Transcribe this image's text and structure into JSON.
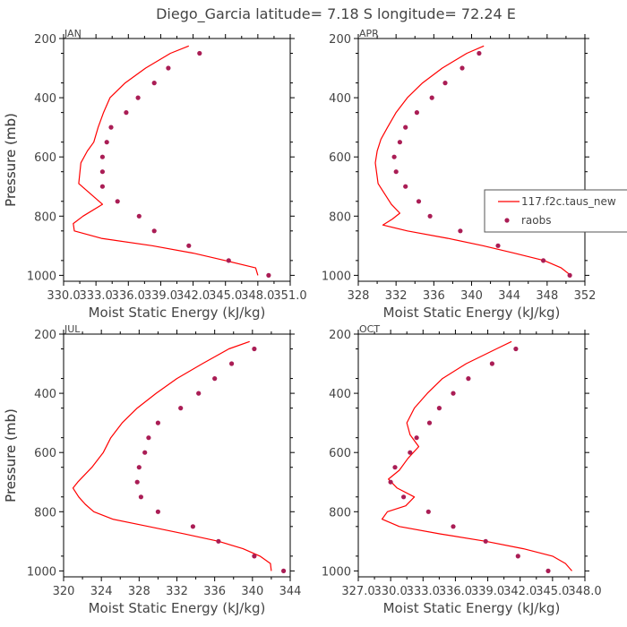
{
  "figure_title": "Diego_Garcia  latitude= 7.18 S longitude= 72.24 E",
  "colors": {
    "model": "#ff0000",
    "obs": "#aa1d55",
    "axis": "#000000",
    "text": "#444444"
  },
  "legend": {
    "model_label": "117.f2c.taus_new",
    "obs_label": "raobs"
  },
  "chart_data": [
    {
      "type": "line",
      "panel": "JAN",
      "title": "JAN",
      "xlabel": "Moist Static Energy (kJ/kg)",
      "ylabel": "Pressure (mb)",
      "xlim": [
        330.0,
        351.0
      ],
      "ylim": [
        1020,
        200
      ],
      "xticks": [
        330.0,
        333.0,
        336.0,
        339.0,
        342.0,
        345.0,
        348.0,
        351.0
      ],
      "xtick_labels": [
        "330.0",
        "333.0",
        "336.0",
        "339.0",
        "342.0",
        "345.0",
        "348.0",
        "351.0"
      ],
      "yticks": [
        200,
        400,
        600,
        800,
        1000
      ],
      "ytick_labels": [
        "200",
        "400",
        "600",
        "800",
        "1000"
      ],
      "model": {
        "name": "117.f2c.taus_new",
        "p": [
          225,
          250,
          300,
          350,
          400,
          450,
          500,
          550,
          580,
          620,
          690,
          760,
          800,
          825,
          850,
          875,
          900,
          925,
          950,
          975,
          1000
        ],
        "x": [
          341.6,
          339.9,
          337.6,
          335.7,
          334.3,
          333.7,
          333.2,
          332.8,
          332.2,
          331.6,
          331.4,
          333.6,
          331.8,
          330.9,
          331.0,
          333.5,
          338.2,
          342.0,
          345.0,
          347.8,
          348.0
        ]
      },
      "obs": {
        "name": "raobs",
        "p": [
          250,
          300,
          350,
          400,
          450,
          500,
          550,
          600,
          650,
          700,
          750,
          800,
          850,
          900,
          950,
          1000
        ],
        "x": [
          342.6,
          339.7,
          338.4,
          336.9,
          335.8,
          334.4,
          334.0,
          333.6,
          333.6,
          333.6,
          335.0,
          337.0,
          338.4,
          341.6,
          345.3,
          349.0
        ]
      }
    },
    {
      "type": "line",
      "panel": "APR",
      "title": "APR",
      "xlabel": "Moist Static Energy (kJ/kg)",
      "ylabel": "Pressure (mb)",
      "xlim": [
        328,
        352
      ],
      "ylim": [
        1020,
        200
      ],
      "xticks": [
        328,
        332,
        336,
        340,
        344,
        348,
        352
      ],
      "xtick_labels": [
        "328",
        "332",
        "336",
        "340",
        "344",
        "348",
        "352"
      ],
      "yticks": [
        200,
        400,
        600,
        800,
        1000
      ],
      "ytick_labels": [
        "200",
        "400",
        "600",
        "800",
        "1000"
      ],
      "model": {
        "name": "117.f2c.taus_new",
        "p": [
          225,
          250,
          300,
          350,
          400,
          450,
          500,
          540,
          580,
          620,
          690,
          760,
          790,
          810,
          830,
          850,
          875,
          900,
          925,
          950,
          975,
          1000
        ],
        "x": [
          341.3,
          339.5,
          336.9,
          334.8,
          333.2,
          332.0,
          331.1,
          330.4,
          330.0,
          329.8,
          330.1,
          331.5,
          332.4,
          331.6,
          330.6,
          333.2,
          337.5,
          341.2,
          344.5,
          347.7,
          349.5,
          350.5
        ]
      },
      "obs": {
        "name": "raobs",
        "p": [
          250,
          300,
          350,
          400,
          450,
          500,
          550,
          600,
          650,
          700,
          750,
          800,
          850,
          900,
          950,
          1000
        ],
        "x": [
          340.8,
          339.0,
          337.2,
          335.8,
          334.2,
          333.0,
          332.4,
          331.8,
          332.0,
          333.0,
          334.4,
          335.6,
          338.8,
          342.8,
          347.6,
          350.4
        ]
      }
    },
    {
      "type": "line",
      "panel": "JUL",
      "title": "JUL",
      "xlabel": "Moist Static Energy (kJ/kg)",
      "ylabel": "Pressure (mb)",
      "xlim": [
        320,
        344
      ],
      "ylim": [
        1020,
        200
      ],
      "xticks": [
        320,
        324,
        328,
        332,
        336,
        340,
        344
      ],
      "xtick_labels": [
        "320",
        "324",
        "328",
        "332",
        "336",
        "340",
        "344"
      ],
      "yticks": [
        200,
        400,
        600,
        800,
        1000
      ],
      "ytick_labels": [
        "200",
        "400",
        "600",
        "800",
        "1000"
      ],
      "model": {
        "name": "117.f2c.taus_new",
        "p": [
          225,
          250,
          300,
          350,
          400,
          450,
          500,
          550,
          600,
          650,
          700,
          720,
          750,
          775,
          800,
          825,
          850,
          875,
          900,
          925,
          950,
          975,
          1000
        ],
        "x": [
          339.7,
          337.5,
          334.7,
          332.0,
          329.8,
          327.8,
          326.2,
          325.0,
          324.2,
          323.0,
          321.5,
          321.0,
          321.6,
          322.3,
          323.2,
          325.2,
          329.0,
          332.8,
          336.4,
          339.0,
          340.8,
          341.9,
          342.0
        ]
      },
      "obs": {
        "name": "raobs",
        "p": [
          250,
          300,
          350,
          400,
          450,
          500,
          550,
          600,
          650,
          700,
          750,
          800,
          850,
          900,
          950,
          1000
        ],
        "x": [
          340.2,
          337.8,
          336.0,
          334.3,
          332.4,
          330.0,
          329.0,
          328.6,
          328.0,
          327.8,
          328.2,
          330.0,
          333.7,
          336.4,
          340.2,
          343.3
        ]
      }
    },
    {
      "type": "line",
      "panel": "OCT",
      "title": "OCT",
      "xlabel": "Moist Static Energy (kJ/kg)",
      "ylabel": "Pressure (mb)",
      "xlim": [
        327.0,
        348.0
      ],
      "ylim": [
        1020,
        200
      ],
      "xticks": [
        327.0,
        330.0,
        333.0,
        336.0,
        339.0,
        342.0,
        345.0,
        348.0
      ],
      "xtick_labels": [
        "327.0",
        "330.0",
        "333.0",
        "336.0",
        "339.0",
        "342.0",
        "345.0",
        "348.0"
      ],
      "yticks": [
        200,
        400,
        600,
        800,
        1000
      ],
      "ytick_labels": [
        "200",
        "400",
        "600",
        "800",
        "1000"
      ],
      "model": {
        "name": "117.f2c.taus_new",
        "p": [
          225,
          250,
          300,
          350,
          400,
          450,
          500,
          540,
          580,
          620,
          660,
          690,
          720,
          750,
          780,
          800,
          825,
          850,
          875,
          900,
          925,
          950,
          975,
          1000
        ],
        "x": [
          341.2,
          339.8,
          337.0,
          334.8,
          333.4,
          332.2,
          331.5,
          331.8,
          332.6,
          331.6,
          330.8,
          329.8,
          330.6,
          332.2,
          331.4,
          329.7,
          329.2,
          330.8,
          334.6,
          338.8,
          342.3,
          345.0,
          346.2,
          346.8
        ]
      },
      "obs": {
        "name": "raobs",
        "p": [
          250,
          300,
          350,
          400,
          450,
          500,
          550,
          600,
          650,
          700,
          750,
          800,
          850,
          900,
          950,
          1000
        ],
        "x": [
          341.6,
          339.4,
          337.2,
          335.8,
          334.5,
          333.6,
          332.4,
          331.8,
          330.4,
          330.0,
          331.2,
          333.5,
          335.8,
          338.8,
          341.8,
          344.6
        ]
      }
    }
  ]
}
